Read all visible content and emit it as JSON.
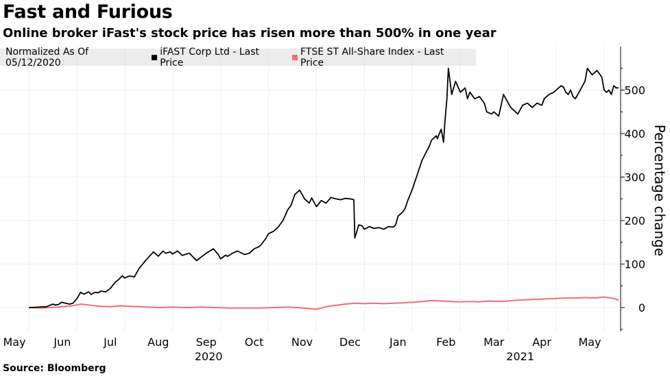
{
  "header": {
    "title": "Fast and Furious",
    "subtitle": "Online broker iFast's stock price has risen more than 500% in one year"
  },
  "legend": {
    "normalized_label": "Normalized As Of 05/12/2020",
    "items": [
      {
        "name": "iFAST Corp Ltd - Last Price",
        "color": "#000000"
      },
      {
        "name": "FTSE ST All-Share Index - Last Price",
        "color": "#f0706e"
      }
    ]
  },
  "footer": {
    "source": "Source: Bloomberg"
  },
  "chart_data": {
    "type": "line",
    "title": "Fast and Furious",
    "subtitle": "Online broker iFast's stock price has risen more than 500% in one year",
    "ylabel": "Percentage change",
    "ylim": [
      -55,
      600
    ],
    "yticks": [
      0,
      100,
      200,
      300,
      400,
      500
    ],
    "x_range_months": [
      0,
      12.6
    ],
    "month_ticks": [
      {
        "label": "May",
        "month": 0
      },
      {
        "label": "Jun",
        "month": 1
      },
      {
        "label": "Jul",
        "month": 2
      },
      {
        "label": "Aug",
        "month": 3
      },
      {
        "label": "Sep",
        "month": 4
      },
      {
        "label": "Oct",
        "month": 5
      },
      {
        "label": "Nov",
        "month": 6
      },
      {
        "label": "Dec",
        "month": 7
      },
      {
        "label": "Jan",
        "month": 8
      },
      {
        "label": "Feb",
        "month": 9
      },
      {
        "label": "Mar",
        "month": 10
      },
      {
        "label": "Apr",
        "month": 11
      },
      {
        "label": "May",
        "month": 12
      }
    ],
    "year_labels": [
      {
        "label": "2020",
        "month": 3.75
      },
      {
        "label": "2021",
        "month": 10.25
      }
    ],
    "x_unit": "months since May 1, 2020",
    "series": [
      {
        "name": "iFAST Corp Ltd - Last Price",
        "color": "#000000",
        "x": [
          0.0,
          0.37,
          0.5,
          0.55,
          0.62,
          0.68,
          0.85,
          0.92,
          1.0,
          1.08,
          1.15,
          1.25,
          1.3,
          1.38,
          1.45,
          1.5,
          1.6,
          1.7,
          1.8,
          1.88,
          1.95,
          2.0,
          2.08,
          2.15,
          2.2,
          2.3,
          2.45,
          2.6,
          2.7,
          2.8,
          2.85,
          2.95,
          3.0,
          3.1,
          3.2,
          3.35,
          3.5,
          3.7,
          3.85,
          3.95,
          4.0,
          4.1,
          4.15,
          4.25,
          4.35,
          4.5,
          4.6,
          4.7,
          4.8,
          4.85,
          4.95,
          5.0,
          5.1,
          5.2,
          5.3,
          5.4,
          5.47,
          5.55,
          5.6,
          5.65,
          5.75,
          5.85,
          5.9,
          6.0,
          6.1,
          6.2,
          6.3,
          6.4,
          6.5,
          6.6,
          6.7,
          6.78,
          6.8,
          6.85,
          6.88,
          6.95,
          7.0,
          7.1,
          7.2,
          7.3,
          7.4,
          7.5,
          7.6,
          7.65,
          7.7,
          7.8,
          7.85,
          7.9,
          8.0,
          8.1,
          8.2,
          8.3,
          8.35,
          8.4,
          8.45,
          8.5,
          8.52,
          8.6,
          8.65,
          8.68,
          8.72,
          8.75,
          8.82,
          8.9,
          9.0,
          9.1,
          9.15,
          9.2,
          9.3,
          9.4,
          9.5,
          9.55,
          9.65,
          9.7,
          9.8,
          9.9,
          10.0,
          10.05,
          10.15,
          10.2,
          10.25,
          10.3,
          10.4,
          10.5,
          10.6,
          10.7,
          10.75,
          10.85,
          10.95,
          11.0,
          11.1,
          11.15,
          11.2,
          11.25,
          11.3,
          11.35,
          11.4,
          11.45,
          11.6,
          11.65,
          11.75,
          11.85,
          11.95,
          12.0,
          12.05,
          12.1,
          12.15,
          12.2,
          12.25,
          12.3
        ],
        "values": [
          0,
          2,
          8,
          6,
          7,
          12,
          8,
          10,
          20,
          35,
          31,
          36,
          30,
          35,
          34,
          38,
          36,
          44,
          58,
          65,
          73,
          68,
          72,
          72,
          70,
          90,
          110,
          128,
          118,
          130,
          125,
          128,
          123,
          130,
          120,
          125,
          108,
          125,
          135,
          122,
          112,
          120,
          118,
          125,
          130,
          122,
          125,
          135,
          140,
          145,
          160,
          170,
          175,
          185,
          200,
          225,
          235,
          260,
          265,
          270,
          250,
          240,
          252,
          232,
          246,
          240,
          253,
          250,
          248,
          251,
          250,
          248,
          160,
          178,
          190,
          188,
          180,
          186,
          182,
          184,
          180,
          186,
          185,
          190,
          210,
          220,
          228,
          245,
          272,
          305,
          338,
          360,
          370,
          385,
          390,
          395,
          388,
          410,
          380,
          430,
          480,
          550,
          490,
          520,
          495,
          505,
          480,
          495,
          480,
          485,
          470,
          450,
          445,
          450,
          440,
          490,
          470,
          460,
          450,
          445,
          455,
          465,
          470,
          460,
          470,
          465,
          480,
          490,
          495,
          500,
          510,
          507,
          495,
          490,
          500,
          485,
          480,
          490,
          520,
          550,
          535,
          545,
          530,
          500,
          495,
          500,
          490,
          510,
          505,
          505
        ]
      },
      {
        "name": "FTSE ST All-Share Index - Last Price",
        "color": "#f0706e",
        "x": [
          0,
          0.3,
          0.6,
          0.9,
          1.1,
          1.3,
          1.5,
          1.7,
          1.9,
          2.1,
          2.3,
          2.5,
          2.7,
          3.0,
          3.3,
          3.6,
          3.9,
          4.2,
          4.5,
          4.8,
          5.1,
          5.4,
          5.6,
          5.8,
          6.0,
          6.2,
          6.4,
          6.6,
          6.8,
          7.0,
          7.2,
          7.4,
          7.6,
          7.8,
          8.0,
          8.2,
          8.4,
          8.6,
          8.8,
          9.0,
          9.2,
          9.4,
          9.6,
          9.8,
          10.0,
          10.2,
          10.4,
          10.6,
          10.8,
          11.0,
          11.2,
          11.4,
          11.6,
          11.8,
          12.0,
          12.2,
          12.3
        ],
        "values": [
          0,
          -1,
          1,
          4,
          8,
          5,
          3,
          2,
          4,
          3,
          2,
          1,
          0,
          1,
          0,
          1,
          0,
          -1,
          -1,
          -1,
          0,
          1,
          0,
          -2,
          -4,
          2,
          5,
          8,
          10,
          9,
          10,
          9,
          10,
          11,
          12,
          14,
          16,
          15,
          14,
          13,
          14,
          13,
          15,
          14,
          15,
          17,
          18,
          19,
          20,
          21,
          22,
          22,
          23,
          22,
          24,
          21,
          17
        ]
      }
    ]
  }
}
